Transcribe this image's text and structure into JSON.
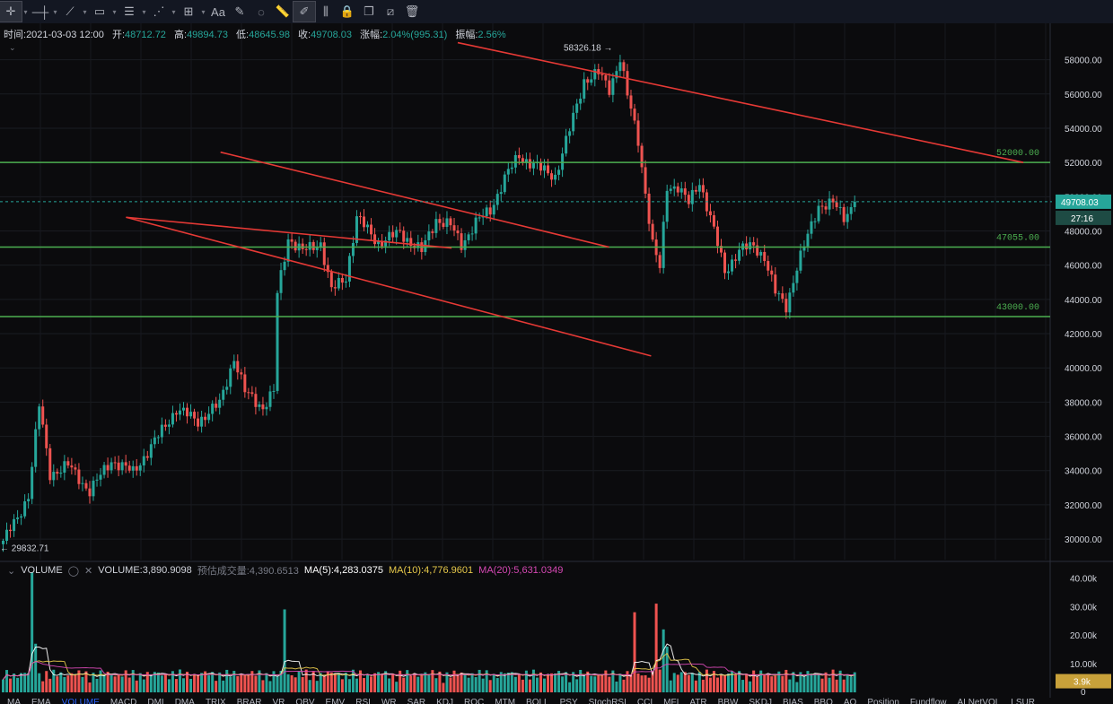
{
  "toolbar": {
    "tools": [
      {
        "icon": "crosshair-icon",
        "active": true
      },
      {
        "icon": "horizontal-line-icon"
      },
      {
        "icon": "trend-lines-icon"
      },
      {
        "icon": "rectangle-icon"
      },
      {
        "icon": "fib-lines-icon"
      },
      {
        "icon": "pattern-icon"
      },
      {
        "icon": "measure-icon"
      },
      {
        "icon": "text-icon",
        "glyph": "Aa"
      },
      {
        "icon": "brush-icon"
      },
      {
        "icon": "eraser-icon"
      },
      {
        "icon": "ruler-icon"
      },
      {
        "icon": "magnet-drawing-icon",
        "active": true
      },
      {
        "icon": "candles-icon"
      },
      {
        "icon": "lock-icon"
      },
      {
        "icon": "copy-icon"
      },
      {
        "icon": "hide-drawings-icon"
      },
      {
        "icon": "trash-icon"
      }
    ]
  },
  "ohlc": {
    "time_label": "时间:",
    "time": "2021-03-03 12:00",
    "open_label": "开:",
    "open": "48712.72",
    "high_label": "高:",
    "high": "49894.73",
    "low_label": "低:",
    "low": "48645.98",
    "close_label": "收:",
    "close": "49708.03",
    "change_label": "涨幅:",
    "change": "2.04%(995.31)",
    "amplitude_label": "振幅:",
    "amplitude": "2.56%"
  },
  "volume_legend": {
    "name": "VOLUME",
    "volume": "VOLUME:3,890.9098",
    "predicted": "预估成交量:4,390.6513",
    "ma5": "MA(5):4,283.0375",
    "ma10": "MA(10):4,776.9601",
    "ma20": "MA(20):5,631.0349"
  },
  "bottom_tabs": [
    "MA",
    "EMA",
    "VOLUME",
    "MACD",
    "DMI",
    "DMA",
    "TRIX",
    "BRAR",
    "VR",
    "OBV",
    "EMV",
    "RSI",
    "WR",
    "SAR",
    "KDJ",
    "ROC",
    "MTM",
    "BOLL",
    "PSY",
    "StochRSI",
    "CCI",
    "MFI",
    "ATR",
    "BBW",
    "SKDJ",
    "BIAS",
    "BBO",
    "AO",
    "Position",
    "Fundflow",
    "AI NetVOL",
    "LSUR"
  ],
  "chart_data": {
    "type": "candlestick",
    "interval_note": "",
    "price_axis": {
      "range": [
        28800,
        59500
      ],
      "ticks": [
        30000,
        32000,
        34000,
        36000,
        38000,
        40000,
        42000,
        44000,
        46000,
        48000,
        50000,
        52000,
        54000,
        56000,
        58000
      ],
      "tick_labels": [
        "30000.00",
        "32000.00",
        "34000.00",
        "36000.00",
        "38000.00",
        "40000.00",
        "42000.00",
        "44000.00",
        "46000.00",
        "48000.00",
        "50000.00",
        "52000.00",
        "54000.00",
        "56000.00",
        "58000.00"
      ]
    },
    "horizontal_levels": [
      {
        "value": 52000,
        "label": "52000.00"
      },
      {
        "value": 47055,
        "label": "47055.00"
      },
      {
        "value": 43000,
        "label": "43000.00"
      }
    ],
    "trend_lines": [
      {
        "from": [
          0.0,
          59000
        ],
        "to": [
          0.63,
          52000
        ]
      },
      {
        "from": [
          0.12,
          48800
        ],
        "to": [
          0.43,
          47000
        ]
      },
      {
        "from": [
          0.12,
          48800
        ],
        "to": [
          0.62,
          40700
        ]
      },
      {
        "from": [
          0.21,
          52600
        ],
        "to": [
          0.58,
          47055
        ]
      }
    ],
    "current_price": {
      "value": 49708.03,
      "label": "49708.03",
      "countdown": "27:16"
    },
    "high_marker": {
      "value": 58326.18,
      "label": "58326.18"
    },
    "low_marker": {
      "value": 29832.71,
      "label": "29832.71"
    },
    "anchors": [
      [
        0,
        29900
      ],
      [
        4,
        31200
      ],
      [
        7,
        32600
      ],
      [
        10,
        37800
      ],
      [
        13,
        33800
      ],
      [
        18,
        34300
      ],
      [
        24,
        32800
      ],
      [
        30,
        34600
      ],
      [
        36,
        33900
      ],
      [
        42,
        35700
      ],
      [
        48,
        37600
      ],
      [
        54,
        36900
      ],
      [
        60,
        37900
      ],
      [
        64,
        40600
      ],
      [
        67,
        38600
      ],
      [
        72,
        37700
      ],
      [
        75,
        38600
      ],
      [
        76,
        44300
      ],
      [
        79,
        47600
      ],
      [
        83,
        46800
      ],
      [
        88,
        47300
      ],
      [
        91,
        44500
      ],
      [
        95,
        45300
      ],
      [
        98,
        48800
      ],
      [
        104,
        47300
      ],
      [
        110,
        47900
      ],
      [
        116,
        46800
      ],
      [
        120,
        48700
      ],
      [
        124,
        48300
      ],
      [
        127,
        47200
      ],
      [
        131,
        48500
      ],
      [
        135,
        49200
      ],
      [
        139,
        51100
      ],
      [
        143,
        52400
      ],
      [
        149,
        51600
      ],
      [
        153,
        51200
      ],
      [
        157,
        53900
      ],
      [
        161,
        56800
      ],
      [
        165,
        57200
      ],
      [
        168,
        56300
      ],
      [
        171,
        58100
      ],
      [
        173,
        55900
      ],
      [
        176,
        53300
      ],
      [
        180,
        47200
      ],
      [
        182,
        45800
      ],
      [
        184,
        50600
      ],
      [
        187,
        50600
      ],
      [
        190,
        49600
      ],
      [
        193,
        50900
      ],
      [
        196,
        48800
      ],
      [
        200,
        45600
      ],
      [
        204,
        46900
      ],
      [
        208,
        47100
      ],
      [
        211,
        46500
      ],
      [
        214,
        44400
      ],
      [
        217,
        43600
      ],
      [
        220,
        45900
      ],
      [
        223,
        47700
      ],
      [
        226,
        49500
      ],
      [
        230,
        49600
      ],
      [
        233,
        48800
      ],
      [
        236,
        49708
      ]
    ],
    "volume_axis": {
      "range": [
        0,
        42000
      ],
      "ticks": [
        0,
        10000,
        20000,
        30000,
        40000
      ],
      "tick_labels": [
        "0",
        "10.00k",
        "20.00k",
        "30.00k",
        "40.00k"
      ]
    },
    "volume_current": {
      "value": 3900,
      "label": "3.9k"
    },
    "volume_spikes": [
      [
        8,
        42000
      ],
      [
        9,
        17000
      ],
      [
        78,
        29000
      ],
      [
        175,
        28000
      ],
      [
        181,
        31000
      ],
      [
        183,
        22000
      ],
      [
        184,
        16000
      ]
    ]
  },
  "colors": {
    "background": "#0b0b0d",
    "up": "#26a69a",
    "down": "#ef5350",
    "level_line": "#4caf50",
    "trend_line": "#e53935",
    "ma5": "#ffffff",
    "ma10": "#e6c84a",
    "ma20": "#d648b4",
    "axis_text": "#d1d4dc",
    "current_price_box": "#26a69a",
    "volume_box": "#c8a13a"
  }
}
